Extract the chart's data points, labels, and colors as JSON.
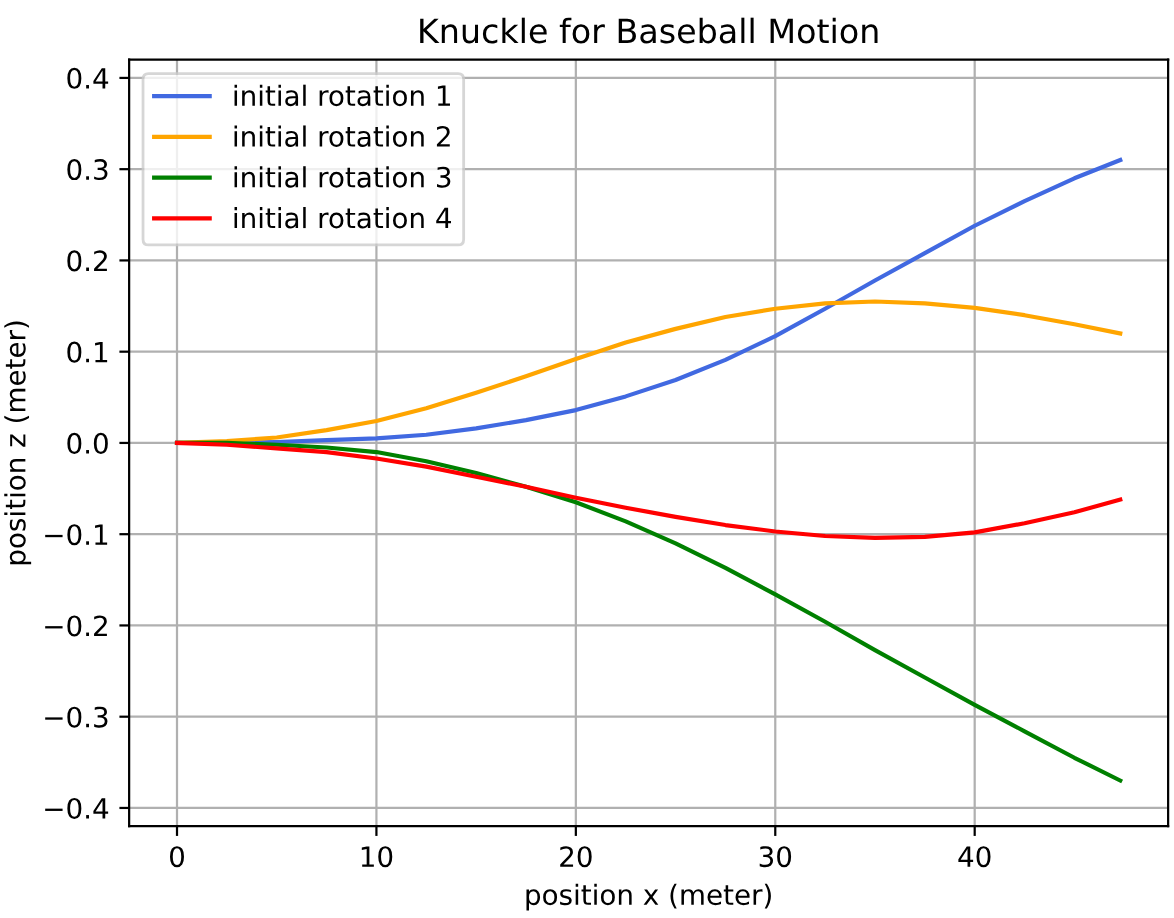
{
  "chart_data": {
    "type": "line",
    "title": "Knuckle for Baseball Motion",
    "xlabel": "position x (meter)",
    "ylabel": "position z (meter)",
    "x": [
      0,
      2.5,
      5,
      7.5,
      10,
      12.5,
      15,
      17.5,
      20,
      22.5,
      25,
      27.5,
      30,
      32.5,
      35,
      37.5,
      40,
      42.5,
      45,
      47.3
    ],
    "series": [
      {
        "name": "initial rotation 1",
        "color": "#4169e1",
        "values": [
          0,
          0.0,
          0.001,
          0.003,
          0.005,
          0.009,
          0.016,
          0.025,
          0.036,
          0.051,
          0.069,
          0.091,
          0.117,
          0.147,
          0.178,
          0.208,
          0.238,
          0.265,
          0.29,
          0.31
        ]
      },
      {
        "name": "initial rotation 2",
        "color": "#ffa500",
        "values": [
          0,
          0.002,
          0.006,
          0.014,
          0.024,
          0.038,
          0.055,
          0.073,
          0.092,
          0.11,
          0.125,
          0.138,
          0.147,
          0.153,
          0.155,
          0.153,
          0.148,
          0.14,
          0.13,
          0.12
        ]
      },
      {
        "name": "initial rotation 3",
        "color": "#008000",
        "values": [
          0,
          0.0,
          -0.002,
          -0.005,
          -0.01,
          -0.02,
          -0.033,
          -0.048,
          -0.065,
          -0.086,
          -0.11,
          -0.137,
          -0.166,
          -0.196,
          -0.227,
          -0.257,
          -0.287,
          -0.316,
          -0.345,
          -0.37
        ]
      },
      {
        "name": "initial rotation 4",
        "color": "#ff0000",
        "values": [
          0,
          -0.002,
          -0.006,
          -0.01,
          -0.017,
          -0.026,
          -0.037,
          -0.048,
          -0.06,
          -0.071,
          -0.081,
          -0.09,
          -0.097,
          -0.102,
          -0.104,
          -0.103,
          -0.098,
          -0.088,
          -0.076,
          -0.062
        ]
      }
    ],
    "xlim": [
      -2.4,
      49.7
    ],
    "ylim": [
      -0.42,
      0.42
    ],
    "xticks": [
      0,
      10,
      20,
      30,
      40
    ],
    "yticks": [
      {
        "value": -0.4,
        "label": "−0.4"
      },
      {
        "value": -0.3,
        "label": "−0.3"
      },
      {
        "value": -0.2,
        "label": "−0.2"
      },
      {
        "value": -0.1,
        "label": "−0.1"
      },
      {
        "value": 0,
        "label": "0.0"
      },
      0.1,
      0.2,
      0.3,
      0.4
    ],
    "grid": true,
    "legend": "top left",
    "line_style": "solid"
  }
}
